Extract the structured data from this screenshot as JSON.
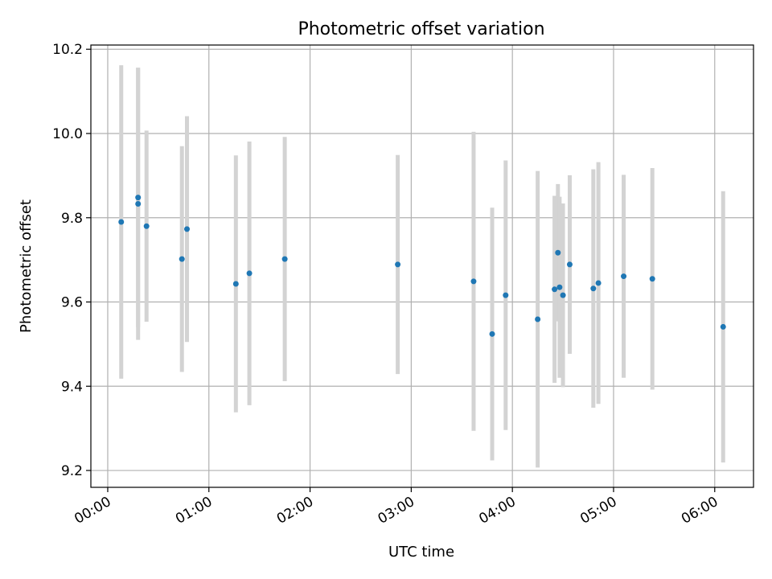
{
  "chart_data": {
    "type": "scatter",
    "title": "Photometric offset variation",
    "xlabel": "UTC time",
    "ylabel": "Photometric offset",
    "xlim": [
      "23:50",
      "06:23"
    ],
    "ylim": [
      9.16,
      10.21
    ],
    "x_ticks": [
      "00:00",
      "01:00",
      "02:00",
      "03:00",
      "04:00",
      "05:00",
      "06:00"
    ],
    "y_ticks": [
      9.2,
      9.4,
      9.6,
      9.8,
      10.0,
      10.2
    ],
    "y_tick_labels": [
      "9.2",
      "9.4",
      "9.6",
      "9.8",
      "10.0",
      "10.2"
    ],
    "grid": true,
    "point_color": "#1f77b4",
    "errorbar_color": "#d3d3d3",
    "points": [
      {
        "x": "00:08",
        "y": 9.79,
        "err": 0.372
      },
      {
        "x": "00:18",
        "y": 9.833,
        "err": 0.323
      },
      {
        "x": "00:18",
        "y": 9.848,
        "err": 0.308
      },
      {
        "x": "00:23",
        "y": 9.78,
        "err": 0.227
      },
      {
        "x": "00:44",
        "y": 9.702,
        "err": 0.268
      },
      {
        "x": "00:47",
        "y": 9.773,
        "err": 0.268
      },
      {
        "x": "01:16",
        "y": 9.643,
        "err": 0.305
      },
      {
        "x": "01:24",
        "y": 9.668,
        "err": 0.313
      },
      {
        "x": "01:45",
        "y": 9.702,
        "err": 0.29
      },
      {
        "x": "02:52",
        "y": 9.689,
        "err": 0.26
      },
      {
        "x": "03:37",
        "y": 9.649,
        "err": 0.355
      },
      {
        "x": "03:48",
        "y": 9.524,
        "err": 0.3
      },
      {
        "x": "03:56",
        "y": 9.616,
        "err": 0.32
      },
      {
        "x": "04:15",
        "y": 9.559,
        "err": 0.352
      },
      {
        "x": "04:25",
        "y": 9.63,
        "err": 0.222
      },
      {
        "x": "04:27",
        "y": 9.717,
        "err": 0.163
      },
      {
        "x": "04:28",
        "y": 9.635,
        "err": 0.215
      },
      {
        "x": "04:30",
        "y": 9.616,
        "err": 0.218
      },
      {
        "x": "04:34",
        "y": 9.689,
        "err": 0.212
      },
      {
        "x": "04:48",
        "y": 9.632,
        "err": 0.283
      },
      {
        "x": "04:51",
        "y": 9.645,
        "err": 0.287
      },
      {
        "x": "05:06",
        "y": 9.661,
        "err": 0.241
      },
      {
        "x": "05:23",
        "y": 9.655,
        "err": 0.263
      },
      {
        "x": "06:05",
        "y": 9.541,
        "err": 0.322
      }
    ]
  }
}
